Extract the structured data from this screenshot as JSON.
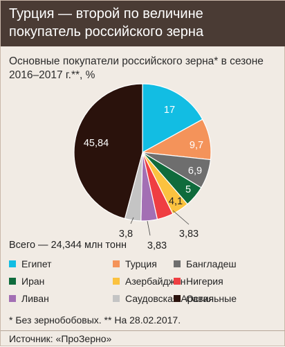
{
  "header": {
    "title": "Турция — второй по величине покупатель российского зерна"
  },
  "chart_data": {
    "type": "pie",
    "title": "Основные покупатели российского зерна* в сезоне 2016–2017 г.**, %",
    "total_label": "Всего — 24,344 млн тонн",
    "slices": [
      {
        "name": "Египет",
        "value": 17,
        "label": "17",
        "color": "#12bde3"
      },
      {
        "name": "Турция",
        "value": 9.7,
        "label": "9,7",
        "color": "#f4935a"
      },
      {
        "name": "Бангладеш",
        "value": 6.9,
        "label": "6,9",
        "color": "#6e6e6e"
      },
      {
        "name": "Иран",
        "value": 5,
        "label": "5",
        "color": "#0f6b3c"
      },
      {
        "name": "Азербайджан",
        "value": 4.1,
        "label": "4,1",
        "color": "#fbc23f"
      },
      {
        "name": "Нигерия",
        "value": 3.83,
        "label": "3,83",
        "color": "#ef3e42"
      },
      {
        "name": "Ливан",
        "value": 3.83,
        "label": "3,83",
        "color": "#a36fb4"
      },
      {
        "name": "Саудовская Аравия",
        "value": 3.8,
        "label": "3,8",
        "color": "#c4c4c4"
      },
      {
        "name": "Остальные",
        "value": 45.84,
        "label": "45,84",
        "color": "#2a120c"
      }
    ]
  },
  "footnote": "* Без зернобобовых.  ** На 28.02.2017.",
  "source": "Источник: «ПроЗерно»"
}
